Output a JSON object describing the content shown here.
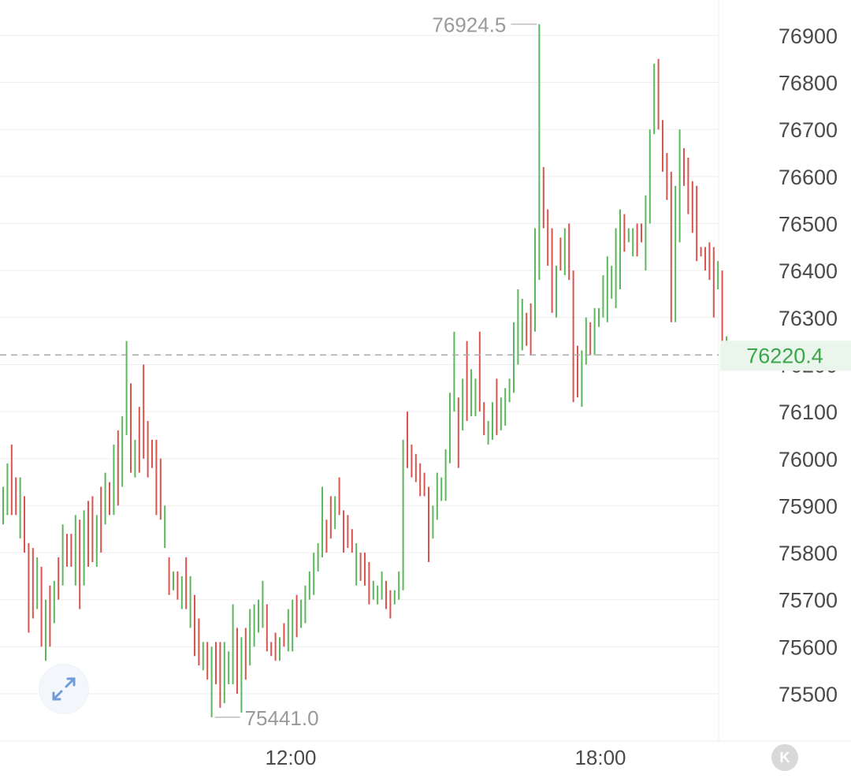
{
  "chart_data": {
    "type": "ohlc",
    "ylim": [
      75400,
      76960
    ],
    "y_ticks": [
      75500,
      75600,
      75700,
      75800,
      75900,
      76000,
      76100,
      76200,
      76300,
      76400,
      76500,
      76600,
      76700,
      76800,
      76900
    ],
    "y_tick_labels": [
      "75500",
      "75600",
      "75700",
      "75800",
      "75900",
      "76000",
      "76100",
      "76200",
      "76300",
      "76400",
      "76500",
      "76600",
      "76700",
      "76800",
      "76900"
    ],
    "x_tick_labels": [
      "12:00",
      "18:00"
    ],
    "grid": true,
    "current_price": "76220.4",
    "high_annotation": "76924.5",
    "low_annotation": "75441.0",
    "bars": [
      {
        "h": 75940,
        "l": 75860,
        "d": "up"
      },
      {
        "h": 75990,
        "l": 75880,
        "d": "up"
      },
      {
        "h": 76030,
        "l": 75880,
        "d": "down"
      },
      {
        "h": 75960,
        "l": 75880,
        "d": "down"
      },
      {
        "h": 75960,
        "l": 75830,
        "d": "up"
      },
      {
        "h": 75920,
        "l": 75800,
        "d": "down"
      },
      {
        "h": 75820,
        "l": 75630,
        "d": "down"
      },
      {
        "h": 75810,
        "l": 75660,
        "d": "down"
      },
      {
        "h": 75790,
        "l": 75680,
        "d": "up"
      },
      {
        "h": 75770,
        "l": 75600,
        "d": "down"
      },
      {
        "h": 75700,
        "l": 75570,
        "d": "up"
      },
      {
        "h": 75730,
        "l": 75600,
        "d": "down"
      },
      {
        "h": 75740,
        "l": 75650,
        "d": "up"
      },
      {
        "h": 75790,
        "l": 75700,
        "d": "down"
      },
      {
        "h": 75860,
        "l": 75730,
        "d": "up"
      },
      {
        "h": 75840,
        "l": 75770,
        "d": "down"
      },
      {
        "h": 75840,
        "l": 75770,
        "d": "down"
      },
      {
        "h": 75880,
        "l": 75730,
        "d": "up"
      },
      {
        "h": 75870,
        "l": 75680,
        "d": "down"
      },
      {
        "h": 75890,
        "l": 75730,
        "d": "up"
      },
      {
        "h": 75910,
        "l": 75770,
        "d": "down"
      },
      {
        "h": 75920,
        "l": 75780,
        "d": "down"
      },
      {
        "h": 75880,
        "l": 75770,
        "d": "up"
      },
      {
        "h": 75940,
        "l": 75800,
        "d": "down"
      },
      {
        "h": 75970,
        "l": 75860,
        "d": "up"
      },
      {
        "h": 75950,
        "l": 75880,
        "d": "down"
      },
      {
        "h": 76030,
        "l": 75880,
        "d": "up"
      },
      {
        "h": 76060,
        "l": 75900,
        "d": "down"
      },
      {
        "h": 76090,
        "l": 75940,
        "d": "up"
      },
      {
        "h": 76250,
        "l": 76050,
        "d": "up"
      },
      {
        "h": 76160,
        "l": 75970,
        "d": "down"
      },
      {
        "h": 76040,
        "l": 75960,
        "d": "up"
      },
      {
        "h": 76110,
        "l": 75970,
        "d": "down"
      },
      {
        "h": 76200,
        "l": 76000,
        "d": "down"
      },
      {
        "h": 76080,
        "l": 75960,
        "d": "down"
      },
      {
        "h": 76040,
        "l": 75980,
        "d": "down"
      },
      {
        "h": 76040,
        "l": 75880,
        "d": "down"
      },
      {
        "h": 76000,
        "l": 75870,
        "d": "down"
      },
      {
        "h": 75900,
        "l": 75810,
        "d": "up"
      },
      {
        "h": 75790,
        "l": 75710,
        "d": "down"
      },
      {
        "h": 75760,
        "l": 75720,
        "d": "up"
      },
      {
        "h": 75760,
        "l": 75700,
        "d": "down"
      },
      {
        "h": 75750,
        "l": 75680,
        "d": "up"
      },
      {
        "h": 75790,
        "l": 75680,
        "d": "down"
      },
      {
        "h": 75750,
        "l": 75640,
        "d": "up"
      },
      {
        "h": 75710,
        "l": 75580,
        "d": "down"
      },
      {
        "h": 75660,
        "l": 75560,
        "d": "down"
      },
      {
        "h": 75610,
        "l": 75550,
        "d": "up"
      },
      {
        "h": 75610,
        "l": 75530,
        "d": "down"
      },
      {
        "h": 75600,
        "l": 75450,
        "d": "up"
      },
      {
        "h": 75610,
        "l": 75520,
        "d": "down"
      },
      {
        "h": 75610,
        "l": 75470,
        "d": "down"
      },
      {
        "h": 75610,
        "l": 75480,
        "d": "up"
      },
      {
        "h": 75590,
        "l": 75520,
        "d": "up"
      },
      {
        "h": 75690,
        "l": 75520,
        "d": "up"
      },
      {
        "h": 75640,
        "l": 75500,
        "d": "down"
      },
      {
        "h": 75620,
        "l": 75460,
        "d": "up"
      },
      {
        "h": 75640,
        "l": 75530,
        "d": "down"
      },
      {
        "h": 75680,
        "l": 75560,
        "d": "up"
      },
      {
        "h": 75690,
        "l": 75600,
        "d": "up"
      },
      {
        "h": 75700,
        "l": 75630,
        "d": "up"
      },
      {
        "h": 75740,
        "l": 75640,
        "d": "up"
      },
      {
        "h": 75690,
        "l": 75590,
        "d": "down"
      },
      {
        "h": 75610,
        "l": 75580,
        "d": "down"
      },
      {
        "h": 75630,
        "l": 75570,
        "d": "down"
      },
      {
        "h": 75620,
        "l": 75570,
        "d": "up"
      },
      {
        "h": 75650,
        "l": 75600,
        "d": "down"
      },
      {
        "h": 75680,
        "l": 75590,
        "d": "up"
      },
      {
        "h": 75700,
        "l": 75590,
        "d": "up"
      },
      {
        "h": 75710,
        "l": 75620,
        "d": "down"
      },
      {
        "h": 75700,
        "l": 75640,
        "d": "up"
      },
      {
        "h": 75730,
        "l": 75650,
        "d": "up"
      },
      {
        "h": 75760,
        "l": 75700,
        "d": "up"
      },
      {
        "h": 75800,
        "l": 75710,
        "d": "up"
      },
      {
        "h": 75820,
        "l": 75760,
        "d": "up"
      },
      {
        "h": 75940,
        "l": 75790,
        "d": "up"
      },
      {
        "h": 75870,
        "l": 75800,
        "d": "down"
      },
      {
        "h": 75920,
        "l": 75830,
        "d": "down"
      },
      {
        "h": 75920,
        "l": 75850,
        "d": "up"
      },
      {
        "h": 75960,
        "l": 75880,
        "d": "down"
      },
      {
        "h": 75890,
        "l": 75800,
        "d": "down"
      },
      {
        "h": 75880,
        "l": 75810,
        "d": "down"
      },
      {
        "h": 75850,
        "l": 75800,
        "d": "down"
      },
      {
        "h": 75820,
        "l": 75730,
        "d": "up"
      },
      {
        "h": 75800,
        "l": 75740,
        "d": "down"
      },
      {
        "h": 75800,
        "l": 75730,
        "d": "down"
      },
      {
        "h": 75780,
        "l": 75690,
        "d": "down"
      },
      {
        "h": 75740,
        "l": 75700,
        "d": "up"
      },
      {
        "h": 75730,
        "l": 75690,
        "d": "up"
      },
      {
        "h": 75760,
        "l": 75700,
        "d": "up"
      },
      {
        "h": 75740,
        "l": 75680,
        "d": "down"
      },
      {
        "h": 75720,
        "l": 75660,
        "d": "down"
      },
      {
        "h": 75720,
        "l": 75690,
        "d": "up"
      },
      {
        "h": 75760,
        "l": 75700,
        "d": "up"
      },
      {
        "h": 76040,
        "l": 75720,
        "d": "up"
      },
      {
        "h": 76100,
        "l": 75980,
        "d": "down"
      },
      {
        "h": 76030,
        "l": 75960,
        "d": "down"
      },
      {
        "h": 76010,
        "l": 75950,
        "d": "down"
      },
      {
        "h": 75990,
        "l": 75920,
        "d": "down"
      },
      {
        "h": 75970,
        "l": 75920,
        "d": "down"
      },
      {
        "h": 75940,
        "l": 75780,
        "d": "down"
      },
      {
        "h": 75900,
        "l": 75830,
        "d": "up"
      },
      {
        "h": 75970,
        "l": 75870,
        "d": "up"
      },
      {
        "h": 75960,
        "l": 75910,
        "d": "up"
      },
      {
        "h": 76020,
        "l": 75910,
        "d": "up"
      },
      {
        "h": 76140,
        "l": 75990,
        "d": "up"
      },
      {
        "h": 76270,
        "l": 76100,
        "d": "up"
      },
      {
        "h": 76130,
        "l": 75980,
        "d": "down"
      },
      {
        "h": 76170,
        "l": 76060,
        "d": "up"
      },
      {
        "h": 76250,
        "l": 76080,
        "d": "down"
      },
      {
        "h": 76190,
        "l": 76090,
        "d": "up"
      },
      {
        "h": 76170,
        "l": 76090,
        "d": "up"
      },
      {
        "h": 76270,
        "l": 76100,
        "d": "down"
      },
      {
        "h": 76120,
        "l": 76050,
        "d": "down"
      },
      {
        "h": 76080,
        "l": 76030,
        "d": "up"
      },
      {
        "h": 76120,
        "l": 76040,
        "d": "up"
      },
      {
        "h": 76170,
        "l": 76050,
        "d": "down"
      },
      {
        "h": 76130,
        "l": 76060,
        "d": "up"
      },
      {
        "h": 76150,
        "l": 76070,
        "d": "up"
      },
      {
        "h": 76170,
        "l": 76120,
        "d": "up"
      },
      {
        "h": 76290,
        "l": 76140,
        "d": "up"
      },
      {
        "h": 76360,
        "l": 76200,
        "d": "up"
      },
      {
        "h": 76340,
        "l": 76230,
        "d": "up"
      },
      {
        "h": 76310,
        "l": 76240,
        "d": "down"
      },
      {
        "h": 76330,
        "l": 76220,
        "d": "down"
      },
      {
        "h": 76490,
        "l": 76270,
        "d": "up"
      },
      {
        "h": 76924,
        "l": 76380,
        "d": "up"
      },
      {
        "h": 76620,
        "l": 76490,
        "d": "down"
      },
      {
        "h": 76530,
        "l": 76410,
        "d": "down"
      },
      {
        "h": 76490,
        "l": 76310,
        "d": "down"
      },
      {
        "h": 76410,
        "l": 76300,
        "d": "up"
      },
      {
        "h": 76470,
        "l": 76400,
        "d": "down"
      },
      {
        "h": 76490,
        "l": 76390,
        "d": "up"
      },
      {
        "h": 76500,
        "l": 76380,
        "d": "down"
      },
      {
        "h": 76400,
        "l": 76120,
        "d": "down"
      },
      {
        "h": 76240,
        "l": 76130,
        "d": "down"
      },
      {
        "h": 76230,
        "l": 76110,
        "d": "up"
      },
      {
        "h": 76300,
        "l": 76200,
        "d": "up"
      },
      {
        "h": 76290,
        "l": 76220,
        "d": "down"
      },
      {
        "h": 76320,
        "l": 76220,
        "d": "up"
      },
      {
        "h": 76320,
        "l": 76280,
        "d": "up"
      },
      {
        "h": 76390,
        "l": 76300,
        "d": "up"
      },
      {
        "h": 76430,
        "l": 76290,
        "d": "up"
      },
      {
        "h": 76410,
        "l": 76340,
        "d": "up"
      },
      {
        "h": 76490,
        "l": 76320,
        "d": "up"
      },
      {
        "h": 76530,
        "l": 76360,
        "d": "up"
      },
      {
        "h": 76520,
        "l": 76440,
        "d": "down"
      },
      {
        "h": 76490,
        "l": 76460,
        "d": "up"
      },
      {
        "h": 76490,
        "l": 76430,
        "d": "up"
      },
      {
        "h": 76500,
        "l": 76430,
        "d": "down"
      },
      {
        "h": 76500,
        "l": 76460,
        "d": "down"
      },
      {
        "h": 76560,
        "l": 76400,
        "d": "up"
      },
      {
        "h": 76700,
        "l": 76500,
        "d": "up"
      },
      {
        "h": 76840,
        "l": 76690,
        "d": "up"
      },
      {
        "h": 76850,
        "l": 76700,
        "d": "down"
      },
      {
        "h": 76720,
        "l": 76610,
        "d": "down"
      },
      {
        "h": 76650,
        "l": 76550,
        "d": "down"
      },
      {
        "h": 76610,
        "l": 76290,
        "d": "down"
      },
      {
        "h": 76580,
        "l": 76290,
        "d": "up"
      },
      {
        "h": 76700,
        "l": 76460,
        "d": "up"
      },
      {
        "h": 76660,
        "l": 76580,
        "d": "down"
      },
      {
        "h": 76640,
        "l": 76520,
        "d": "down"
      },
      {
        "h": 76590,
        "l": 76480,
        "d": "down"
      },
      {
        "h": 76580,
        "l": 76420,
        "d": "down"
      },
      {
        "h": 76450,
        "l": 76430,
        "d": "down"
      },
      {
        "h": 76450,
        "l": 76400,
        "d": "down"
      },
      {
        "h": 76460,
        "l": 76380,
        "d": "down"
      },
      {
        "h": 76450,
        "l": 76300,
        "d": "down"
      },
      {
        "h": 76420,
        "l": 76360,
        "d": "up"
      },
      {
        "h": 76400,
        "l": 76220,
        "d": "down"
      },
      {
        "h": 76260,
        "l": 76210,
        "d": "up"
      }
    ]
  },
  "colors": {
    "up": "#5cb85c",
    "down": "#d9534f",
    "current_price_text": "#3aa64a",
    "current_price_bg": "#eaf6ec",
    "grid": "#eeeeee",
    "axis_text": "#4a4a4a",
    "annotation_text": "#9a9a9a"
  },
  "controls": {
    "expand_icon": "expand-arrows-icon",
    "k_button_label": "K"
  }
}
